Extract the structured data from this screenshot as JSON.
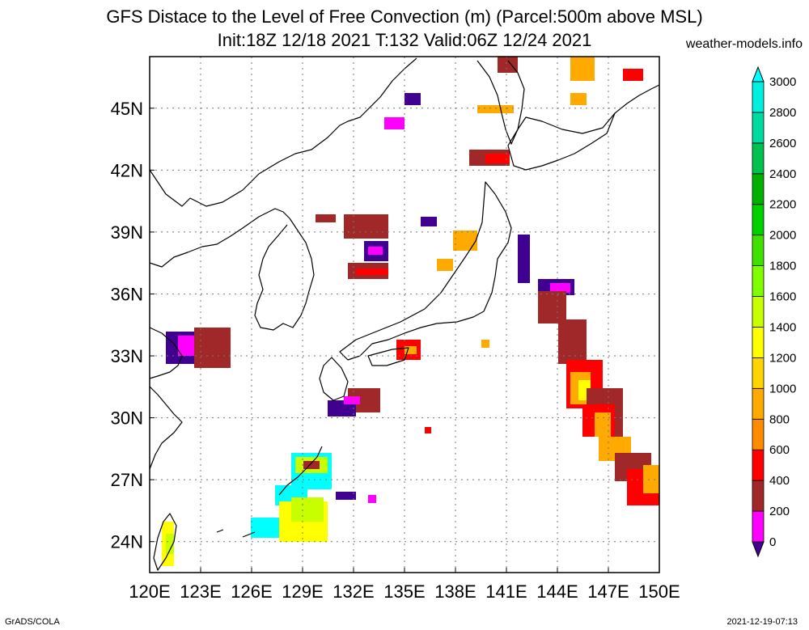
{
  "title_line_1": "GFS Distace to the Level of Free Convection (m) (Parcel:500m above MSL)",
  "title_line_2": "Init:18Z 12/18 2021 T:132 Valid:06Z 12/24 2021",
  "site": "weather-models.info",
  "footer_left": "GrADS/COLA",
  "footer_right": "2021-12-19-07:13",
  "map": {
    "lon_range": [
      120,
      150
    ],
    "lat_range": [
      22.5,
      47.5
    ],
    "x_ticks": [
      "120E",
      "123E",
      "126E",
      "129E",
      "132E",
      "135E",
      "138E",
      "141E",
      "144E",
      "147E",
      "150E"
    ],
    "y_ticks": [
      "24N",
      "27N",
      "30N",
      "33N",
      "36N",
      "39N",
      "42N",
      "45N"
    ],
    "grid": true
  },
  "colorbar": {
    "labels": [
      "0",
      "200",
      "400",
      "600",
      "800",
      "1000",
      "1200",
      "1400",
      "1600",
      "1800",
      "2000",
      "2200",
      "2400",
      "2600",
      "2800",
      "3000"
    ],
    "colors": [
      "#400090",
      "#ff00ff",
      "#a02828",
      "#ff0000",
      "#ff8c00",
      "#ffaa00",
      "#ffd400",
      "#ffff00",
      "#c8ff00",
      "#80ff00",
      "#40e000",
      "#00d000",
      "#00b000",
      "#00c050",
      "#00dca0",
      "#00f0e0",
      "#00ffff"
    ],
    "extend_min_color": "#400090",
    "extend_max_color": "#00ffff"
  },
  "field_colors": {
    "purple": "#400090",
    "magenta": "#ff00ff",
    "brown": "#a02828",
    "red": "#ff0000",
    "orange": "#ffaa00",
    "yellow": "#ffff00",
    "lime": "#c8ff00",
    "cyan": "#00ffff",
    "teal": "#00dca0"
  }
}
